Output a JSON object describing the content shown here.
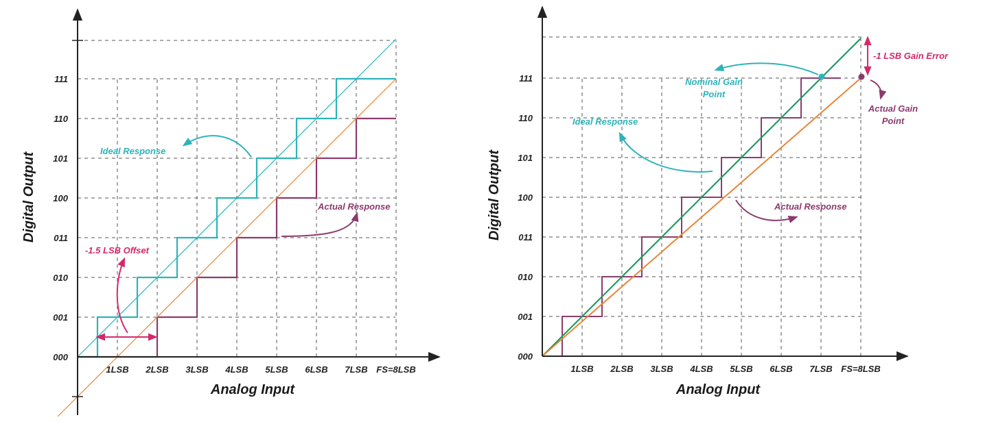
{
  "colors": {
    "ideal": "#2cb3bb",
    "actual": "#8c3a6e",
    "magenta": "#d4296b",
    "green": "#1f9a63",
    "orange": "#e6873c",
    "axis": "#222222",
    "grid": "#555555"
  },
  "chart_data": [
    {
      "type": "line",
      "xlabel": "Analog Input",
      "ylabel": "Digital Output",
      "x_tick_labels": [
        "1LSB",
        "2LSB",
        "3LSB",
        "4LSB",
        "5LSB",
        "6LSB",
        "7LSB",
        "FS=8LSB"
      ],
      "y_tick_labels": [
        "000",
        "001",
        "010",
        "011",
        "100",
        "101",
        "110",
        "111"
      ],
      "xlim": [
        0,
        8
      ],
      "ylim": [
        0,
        7
      ],
      "grid": true,
      "series": [
        {
          "name": "Ideal Response",
          "kind": "staircase",
          "x": [
            0,
            0.5,
            1.5,
            2.5,
            3.5,
            4.5,
            5.5,
            6.5,
            8
          ],
          "y": [
            0,
            1,
            2,
            3,
            4,
            5,
            6,
            7,
            7
          ]
        },
        {
          "name": "Actual Response",
          "kind": "staircase",
          "x": [
            0,
            2,
            3,
            4,
            5,
            6,
            7,
            8
          ],
          "y": [
            0,
            1,
            2,
            3,
            4,
            5,
            6,
            6
          ]
        },
        {
          "kind": "line",
          "x": [
            0,
            8
          ],
          "y": [
            0,
            8
          ]
        },
        {
          "kind": "line",
          "x": [
            -0.5,
            8
          ],
          "y": [
            -1.5,
            7
          ]
        }
      ],
      "annotations": {
        "offset": "-1.5 LSB Offset",
        "ideal": "Ideal Response",
        "actual": "Actual Response"
      }
    },
    {
      "type": "line",
      "xlabel": "Analog Input",
      "ylabel": "Digital Output",
      "x_tick_labels": [
        "1LSB",
        "2LSB",
        "3LSB",
        "4LSB",
        "5LSB",
        "6LSB",
        "7LSB",
        "FS=8LSB"
      ],
      "y_tick_labels": [
        "000",
        "001",
        "010",
        "011",
        "100",
        "101",
        "110",
        "111"
      ],
      "xlim": [
        0,
        8
      ],
      "ylim": [
        0,
        7
      ],
      "grid": true,
      "series": [
        {
          "name": "Ideal Response",
          "kind": "staircase",
          "x": [
            0,
            0.5,
            1.5,
            2.5,
            3.5,
            4.5,
            5.5,
            6.5,
            7
          ],
          "y": [
            0,
            1,
            2,
            3,
            4,
            5,
            6,
            7,
            7
          ]
        },
        {
          "name": "Actual Response",
          "kind": "staircase",
          "x": [
            0,
            0.5,
            1.5,
            2.5,
            3.5,
            4.5,
            5.5,
            6.5,
            7.5
          ],
          "y": [
            0,
            1,
            2,
            3,
            4,
            5,
            6,
            7,
            7
          ]
        },
        {
          "kind": "line",
          "x": [
            0,
            8
          ],
          "y": [
            0,
            8
          ]
        },
        {
          "kind": "line",
          "x": [
            0,
            8
          ],
          "y": [
            0,
            7
          ]
        }
      ],
      "points": [
        {
          "label": "Nominal Gain Point",
          "x": 7,
          "y": 7
        },
        {
          "label": "Actual Gain Point",
          "x": 8,
          "y": 7
        }
      ],
      "annotations": {
        "gain_error": "-1 LSB Gain Error",
        "nominal_1": "Nominal Gain",
        "nominal_2": "Point",
        "actual_point_1": "Actual Gain",
        "actual_point_2": "Point",
        "ideal": "Ideal Response",
        "actual": "Actual Response"
      }
    }
  ]
}
